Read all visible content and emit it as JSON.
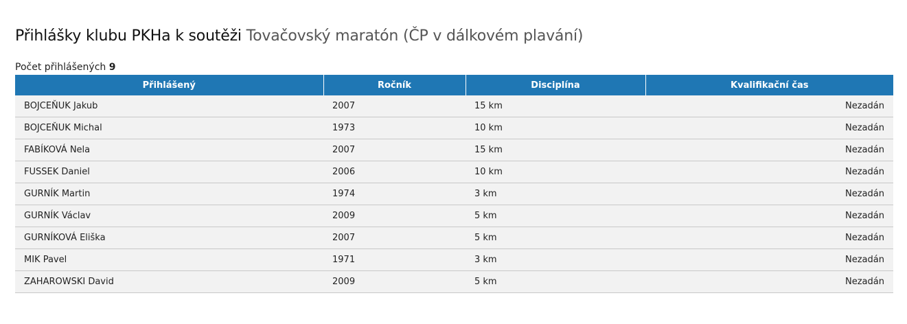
{
  "header": {
    "title_prefix": "Přihlášky klubu PKHa k soutěži",
    "event_name": "Tovačovský maratón (ČP v dálkovém plavání)"
  },
  "summary": {
    "count_label": "Počet přihlášených",
    "count_value": "9"
  },
  "table": {
    "columns": [
      "Přihlášený",
      "Ročník",
      "Disciplína",
      "Kvalifikační čas"
    ],
    "rows": [
      {
        "name": "BOJCEŇUK Jakub",
        "year": "2007",
        "discipline": "15 km",
        "qual_time": "Nezadán"
      },
      {
        "name": "BOJCEŇUK Michal",
        "year": "1973",
        "discipline": "10 km",
        "qual_time": "Nezadán"
      },
      {
        "name": "FABÍKOVÁ Nela",
        "year": "2007",
        "discipline": "15 km",
        "qual_time": "Nezadán"
      },
      {
        "name": "FUSSEK Daniel",
        "year": "2006",
        "discipline": "10 km",
        "qual_time": "Nezadán"
      },
      {
        "name": "GURNÍK Martin",
        "year": "1974",
        "discipline": "3 km",
        "qual_time": "Nezadán"
      },
      {
        "name": "GURNÍK Václav",
        "year": "2009",
        "discipline": "5 km",
        "qual_time": "Nezadán"
      },
      {
        "name": "GURNÍKOVÁ Eliška",
        "year": "2007",
        "discipline": "5 km",
        "qual_time": "Nezadán"
      },
      {
        "name": "MIK Pavel",
        "year": "1971",
        "discipline": "3 km",
        "qual_time": "Nezadán"
      },
      {
        "name": "ZAHAROWSKI David",
        "year": "2009",
        "discipline": "5 km",
        "qual_time": "Nezadán"
      }
    ]
  },
  "colors": {
    "header_bg": "#1f77b4",
    "row_bg": "#f2f2f2"
  }
}
